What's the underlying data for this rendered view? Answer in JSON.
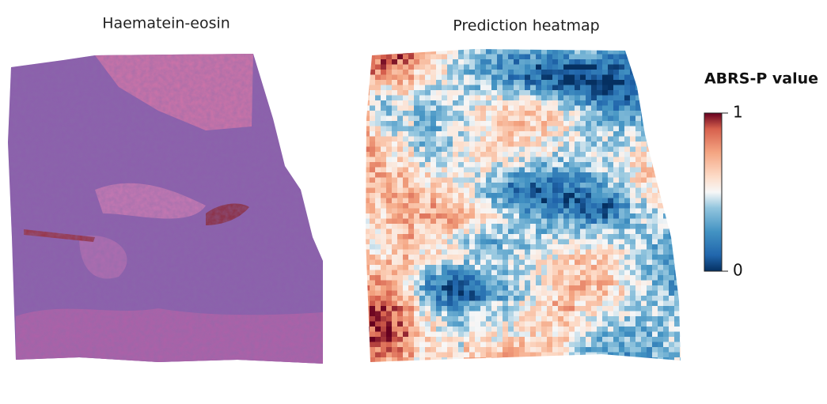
{
  "panels": [
    {
      "title": "Haematein-eosin"
    },
    {
      "title": "Prediction heatmap"
    }
  ],
  "colorbar": {
    "title": "ABRS-P value",
    "range": [
      0,
      1
    ],
    "ticks": [
      0,
      1
    ]
  }
}
